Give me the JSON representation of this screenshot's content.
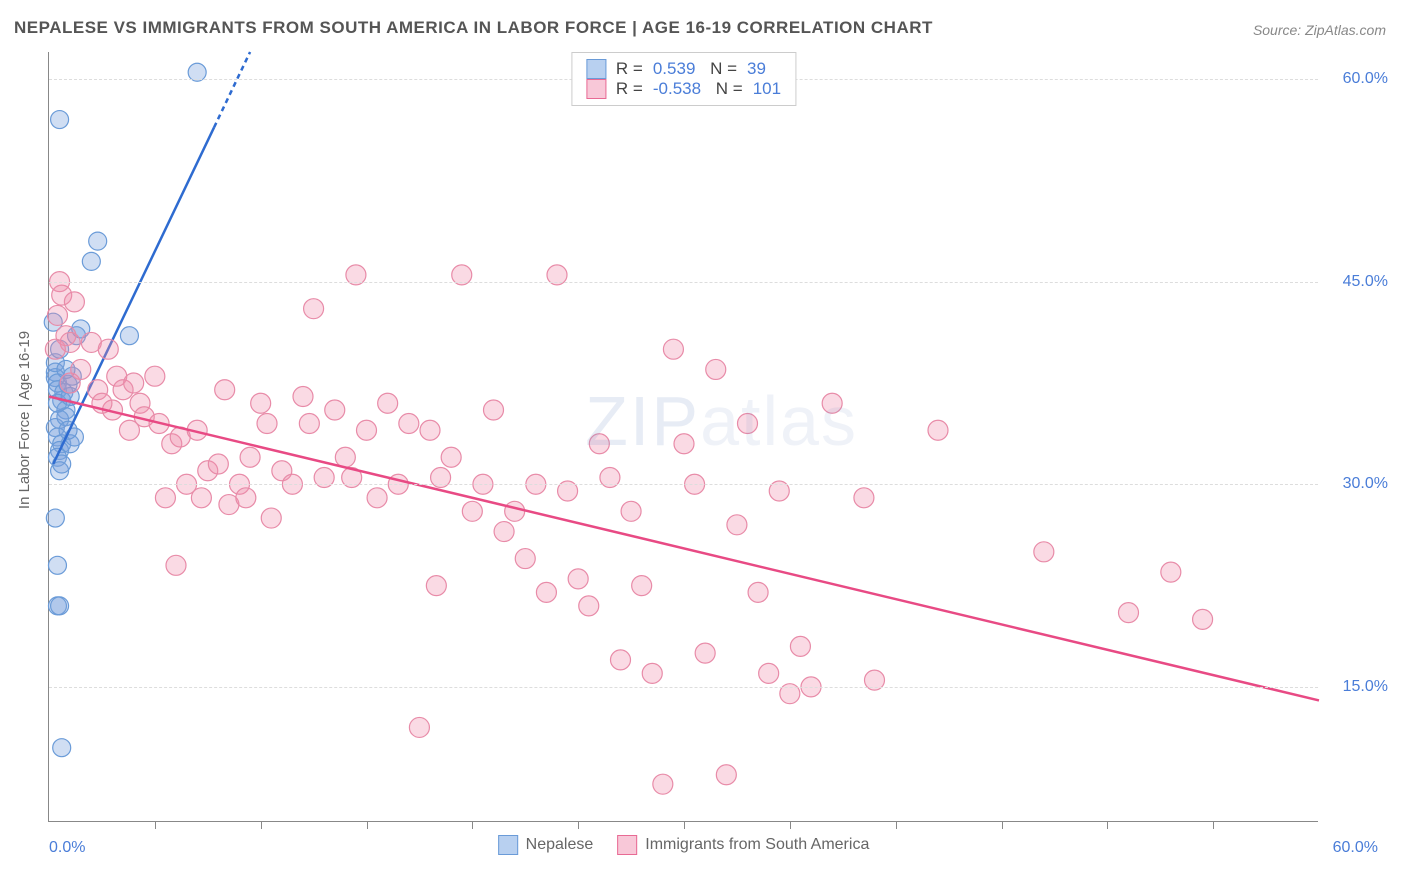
{
  "title": "NEPALESE VS IMMIGRANTS FROM SOUTH AMERICA IN LABOR FORCE | AGE 16-19 CORRELATION CHART",
  "source": "Source: ZipAtlas.com",
  "y_axis_label": "In Labor Force | Age 16-19",
  "watermark": "ZIPatlas",
  "chart": {
    "type": "scatter",
    "x_range": [
      0.0,
      60.0
    ],
    "y_range": [
      5.0,
      62.0
    ],
    "y_ticks": [
      15.0,
      30.0,
      45.0,
      60.0
    ],
    "y_tick_labels": [
      "15.0%",
      "30.0%",
      "45.0%",
      "60.0%"
    ],
    "x_min_label": "0.0%",
    "x_max_label": "60.0%",
    "x_tick_positions": [
      5,
      10,
      15,
      20,
      25,
      30,
      35,
      40,
      45,
      50,
      55
    ],
    "background_color": "#ffffff",
    "grid_color": "#dddddd",
    "axis_color": "#888888",
    "tick_label_color": "#4a7dd8",
    "series": [
      {
        "name": "Nepalese",
        "color_fill": "rgba(120,160,220,0.35)",
        "color_stroke": "#6a9bd8",
        "swatch_fill": "#b8d0f0",
        "swatch_border": "#6a9bd8",
        "marker_radius": 9,
        "stats": {
          "R": "0.539",
          "N": "39"
        },
        "trend": {
          "x1": 0.2,
          "y1": 31.5,
          "x2": 9.5,
          "y2": 62.0,
          "dash_from_x": 7.8,
          "color": "#2e6bd0",
          "width": 2.5
        },
        "points": [
          [
            0.5,
            57.0
          ],
          [
            0.3,
            38.3
          ],
          [
            0.3,
            37.9
          ],
          [
            0.4,
            37.5
          ],
          [
            0.4,
            37.0
          ],
          [
            0.6,
            36.2
          ],
          [
            0.8,
            35.5
          ],
          [
            0.5,
            34.8
          ],
          [
            0.3,
            34.2
          ],
          [
            0.4,
            33.5
          ],
          [
            0.6,
            33.0
          ],
          [
            0.5,
            32.5
          ],
          [
            0.4,
            32.0
          ],
          [
            0.7,
            36.8
          ],
          [
            0.9,
            37.4
          ],
          [
            1.1,
            38.0
          ],
          [
            1.3,
            41.0
          ],
          [
            1.5,
            41.5
          ],
          [
            2.0,
            46.5
          ],
          [
            2.3,
            48.0
          ],
          [
            3.8,
            41.0
          ],
          [
            7.0,
            60.5
          ],
          [
            0.3,
            27.5
          ],
          [
            0.4,
            24.0
          ],
          [
            0.4,
            21.0
          ],
          [
            0.5,
            21.0
          ],
          [
            0.6,
            10.5
          ],
          [
            0.8,
            35.0
          ],
          [
            1.0,
            33.0
          ],
          [
            1.2,
            33.5
          ],
          [
            0.5,
            31.0
          ],
          [
            0.6,
            31.5
          ],
          [
            0.4,
            36.0
          ],
          [
            0.9,
            34.0
          ],
          [
            1.0,
            36.5
          ],
          [
            0.3,
            39.0
          ],
          [
            0.5,
            40.0
          ],
          [
            0.2,
            42.0
          ],
          [
            0.8,
            38.5
          ]
        ]
      },
      {
        "name": "Immigrants from South America",
        "color_fill": "rgba(240,140,170,0.32)",
        "color_stroke": "#e88ba8",
        "swatch_fill": "#f8c8d8",
        "swatch_border": "#e86a94",
        "marker_radius": 10,
        "stats": {
          "R": "-0.538",
          "N": "101"
        },
        "trend": {
          "x1": 0.0,
          "y1": 36.5,
          "x2": 60.0,
          "y2": 14.0,
          "color": "#e84a84",
          "width": 2.5
        },
        "points": [
          [
            0.5,
            45.0
          ],
          [
            0.4,
            42.5
          ],
          [
            0.6,
            44.0
          ],
          [
            0.8,
            41.0
          ],
          [
            1.0,
            40.5
          ],
          [
            1.2,
            43.5
          ],
          [
            1.5,
            38.5
          ],
          [
            2.0,
            40.5
          ],
          [
            2.3,
            37.0
          ],
          [
            2.8,
            40.0
          ],
          [
            3.0,
            35.5
          ],
          [
            3.2,
            38.0
          ],
          [
            3.5,
            37.0
          ],
          [
            4.0,
            37.5
          ],
          [
            4.3,
            36.0
          ],
          [
            4.5,
            35.0
          ],
          [
            5.0,
            38.0
          ],
          [
            5.2,
            34.5
          ],
          [
            5.5,
            29.0
          ],
          [
            5.8,
            33.0
          ],
          [
            6.0,
            24.0
          ],
          [
            6.2,
            33.5
          ],
          [
            6.5,
            30.0
          ],
          [
            7.0,
            34.0
          ],
          [
            7.2,
            29.0
          ],
          [
            7.5,
            31.0
          ],
          [
            8.0,
            31.5
          ],
          [
            8.3,
            37.0
          ],
          [
            8.5,
            28.5
          ],
          [
            9.0,
            30.0
          ],
          [
            9.3,
            29.0
          ],
          [
            9.5,
            32.0
          ],
          [
            10.0,
            36.0
          ],
          [
            10.3,
            34.5
          ],
          [
            10.5,
            27.5
          ],
          [
            11.0,
            31.0
          ],
          [
            11.5,
            30.0
          ],
          [
            12.0,
            36.5
          ],
          [
            12.3,
            34.5
          ],
          [
            12.5,
            43.0
          ],
          [
            13.0,
            30.5
          ],
          [
            13.5,
            35.5
          ],
          [
            14.0,
            32.0
          ],
          [
            14.3,
            30.5
          ],
          [
            14.5,
            45.5
          ],
          [
            15.0,
            34.0
          ],
          [
            15.5,
            29.0
          ],
          [
            16.0,
            36.0
          ],
          [
            16.5,
            30.0
          ],
          [
            17.0,
            34.5
          ],
          [
            17.5,
            12.0
          ],
          [
            18.0,
            34.0
          ],
          [
            18.3,
            22.5
          ],
          [
            18.5,
            30.5
          ],
          [
            19.0,
            32.0
          ],
          [
            19.5,
            45.5
          ],
          [
            20.0,
            28.0
          ],
          [
            20.5,
            30.0
          ],
          [
            21.0,
            35.5
          ],
          [
            21.5,
            26.5
          ],
          [
            22.0,
            28.0
          ],
          [
            22.5,
            24.5
          ],
          [
            23.0,
            30.0
          ],
          [
            23.5,
            22.0
          ],
          [
            24.0,
            45.5
          ],
          [
            24.5,
            29.5
          ],
          [
            25.0,
            23.0
          ],
          [
            25.5,
            21.0
          ],
          [
            26.0,
            33.0
          ],
          [
            26.5,
            30.5
          ],
          [
            27.0,
            17.0
          ],
          [
            27.5,
            28.0
          ],
          [
            28.0,
            22.5
          ],
          [
            28.5,
            16.0
          ],
          [
            29.0,
            7.8
          ],
          [
            29.5,
            40.0
          ],
          [
            30.0,
            33.0
          ],
          [
            30.5,
            30.0
          ],
          [
            31.0,
            17.5
          ],
          [
            31.5,
            38.5
          ],
          [
            32.0,
            8.5
          ],
          [
            32.5,
            27.0
          ],
          [
            33.0,
            34.5
          ],
          [
            33.5,
            22.0
          ],
          [
            34.0,
            16.0
          ],
          [
            34.5,
            29.5
          ],
          [
            35.0,
            14.5
          ],
          [
            35.5,
            18.0
          ],
          [
            36.0,
            15.0
          ],
          [
            37.0,
            36.0
          ],
          [
            38.5,
            29.0
          ],
          [
            39.0,
            15.5
          ],
          [
            42.0,
            34.0
          ],
          [
            47.0,
            25.0
          ],
          [
            51.0,
            20.5
          ],
          [
            53.0,
            23.5
          ],
          [
            54.5,
            20.0
          ],
          [
            1.0,
            37.5
          ],
          [
            2.5,
            36.0
          ],
          [
            3.8,
            34.0
          ],
          [
            0.3,
            40.0
          ]
        ]
      }
    ]
  }
}
